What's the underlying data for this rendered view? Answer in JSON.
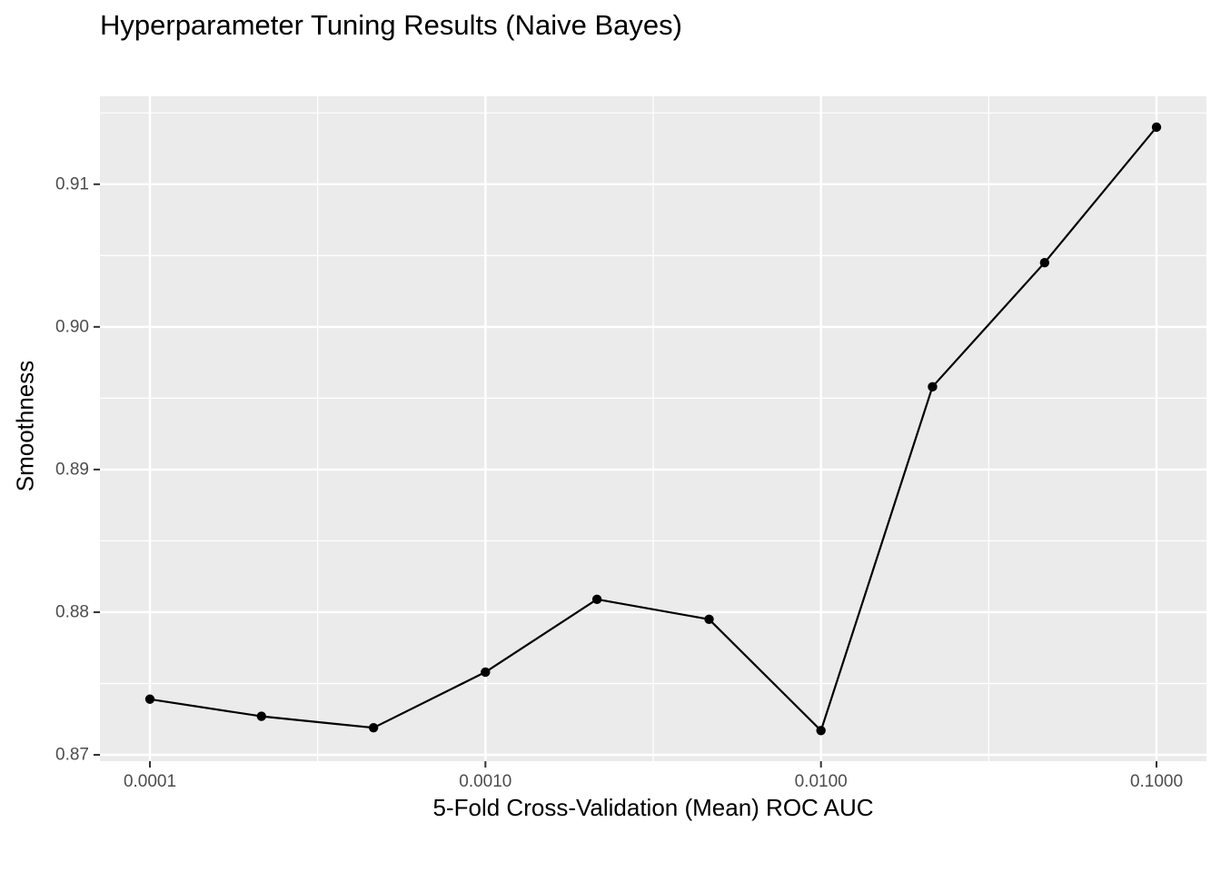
{
  "chart_data": {
    "type": "line",
    "title": "Hyperparameter Tuning Results (Naive Bayes)",
    "xlabel": "5-Fold Cross-Validation (Mean) ROC AUC",
    "ylabel": "Smoothness",
    "x_scale": "log10",
    "xlim": [
      0.0001,
      0.1
    ],
    "ylim": [
      0.87,
      0.914
    ],
    "x_ticks": [
      0.0001,
      0.001,
      0.01,
      0.1
    ],
    "x_tick_labels": [
      "0.0001",
      "0.0010",
      "0.0100",
      "0.1000"
    ],
    "y_ticks": [
      0.87,
      0.88,
      0.89,
      0.9,
      0.91
    ],
    "y_tick_labels": [
      "0.87",
      "0.88",
      "0.89",
      "0.90",
      "0.91"
    ],
    "grid": true,
    "background": "#ebebeb",
    "line_color": "#000000",
    "points": [
      {
        "x": 0.0001,
        "y": 0.8739
      },
      {
        "x": 0.000215,
        "y": 0.8727
      },
      {
        "x": 0.000464,
        "y": 0.8719
      },
      {
        "x": 0.001,
        "y": 0.8758
      },
      {
        "x": 0.00215,
        "y": 0.8809
      },
      {
        "x": 0.00464,
        "y": 0.8795
      },
      {
        "x": 0.01,
        "y": 0.8717
      },
      {
        "x": 0.0215,
        "y": 0.8958
      },
      {
        "x": 0.0464,
        "y": 0.9045
      },
      {
        "x": 0.1,
        "y": 0.914
      }
    ]
  }
}
